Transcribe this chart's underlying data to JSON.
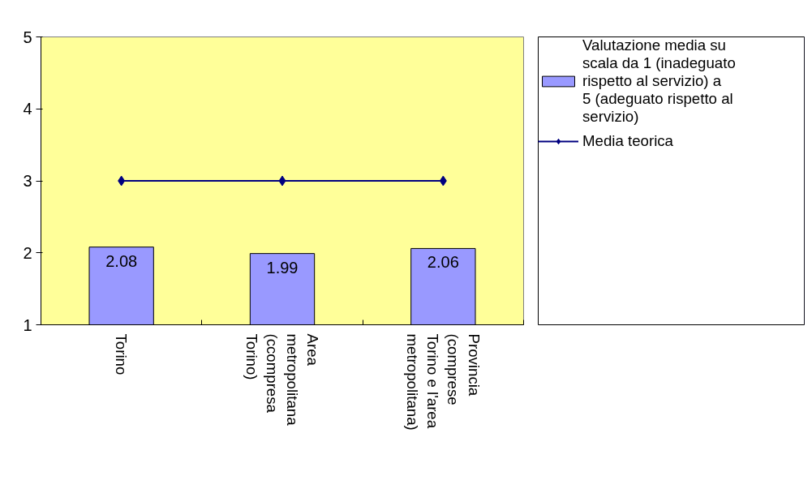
{
  "chart_data": {
    "type": "bar",
    "categories": [
      "Torino",
      "Area metropolitana (ccompresa Torino)",
      "Provincia (comprese Torino e l'area metropolitana)"
    ],
    "series": [
      {
        "name": "Valutazione media su scala da 1 (inadeguato rispetto al servizio) a 5 (adeguato rispetto al servizio)",
        "color": "#9999ff",
        "values": [
          2.08,
          1.99,
          2.06
        ],
        "value_labels": [
          "2.08",
          "1.99",
          "2.06"
        ]
      },
      {
        "name": "Media teorica",
        "type": "line",
        "color": "#000080",
        "values": [
          3,
          3,
          3
        ],
        "marker": "diamond"
      }
    ],
    "ylim": [
      1,
      5
    ],
    "yticks": [
      1,
      2,
      3,
      4,
      5
    ],
    "grid": false,
    "legend": "right"
  }
}
